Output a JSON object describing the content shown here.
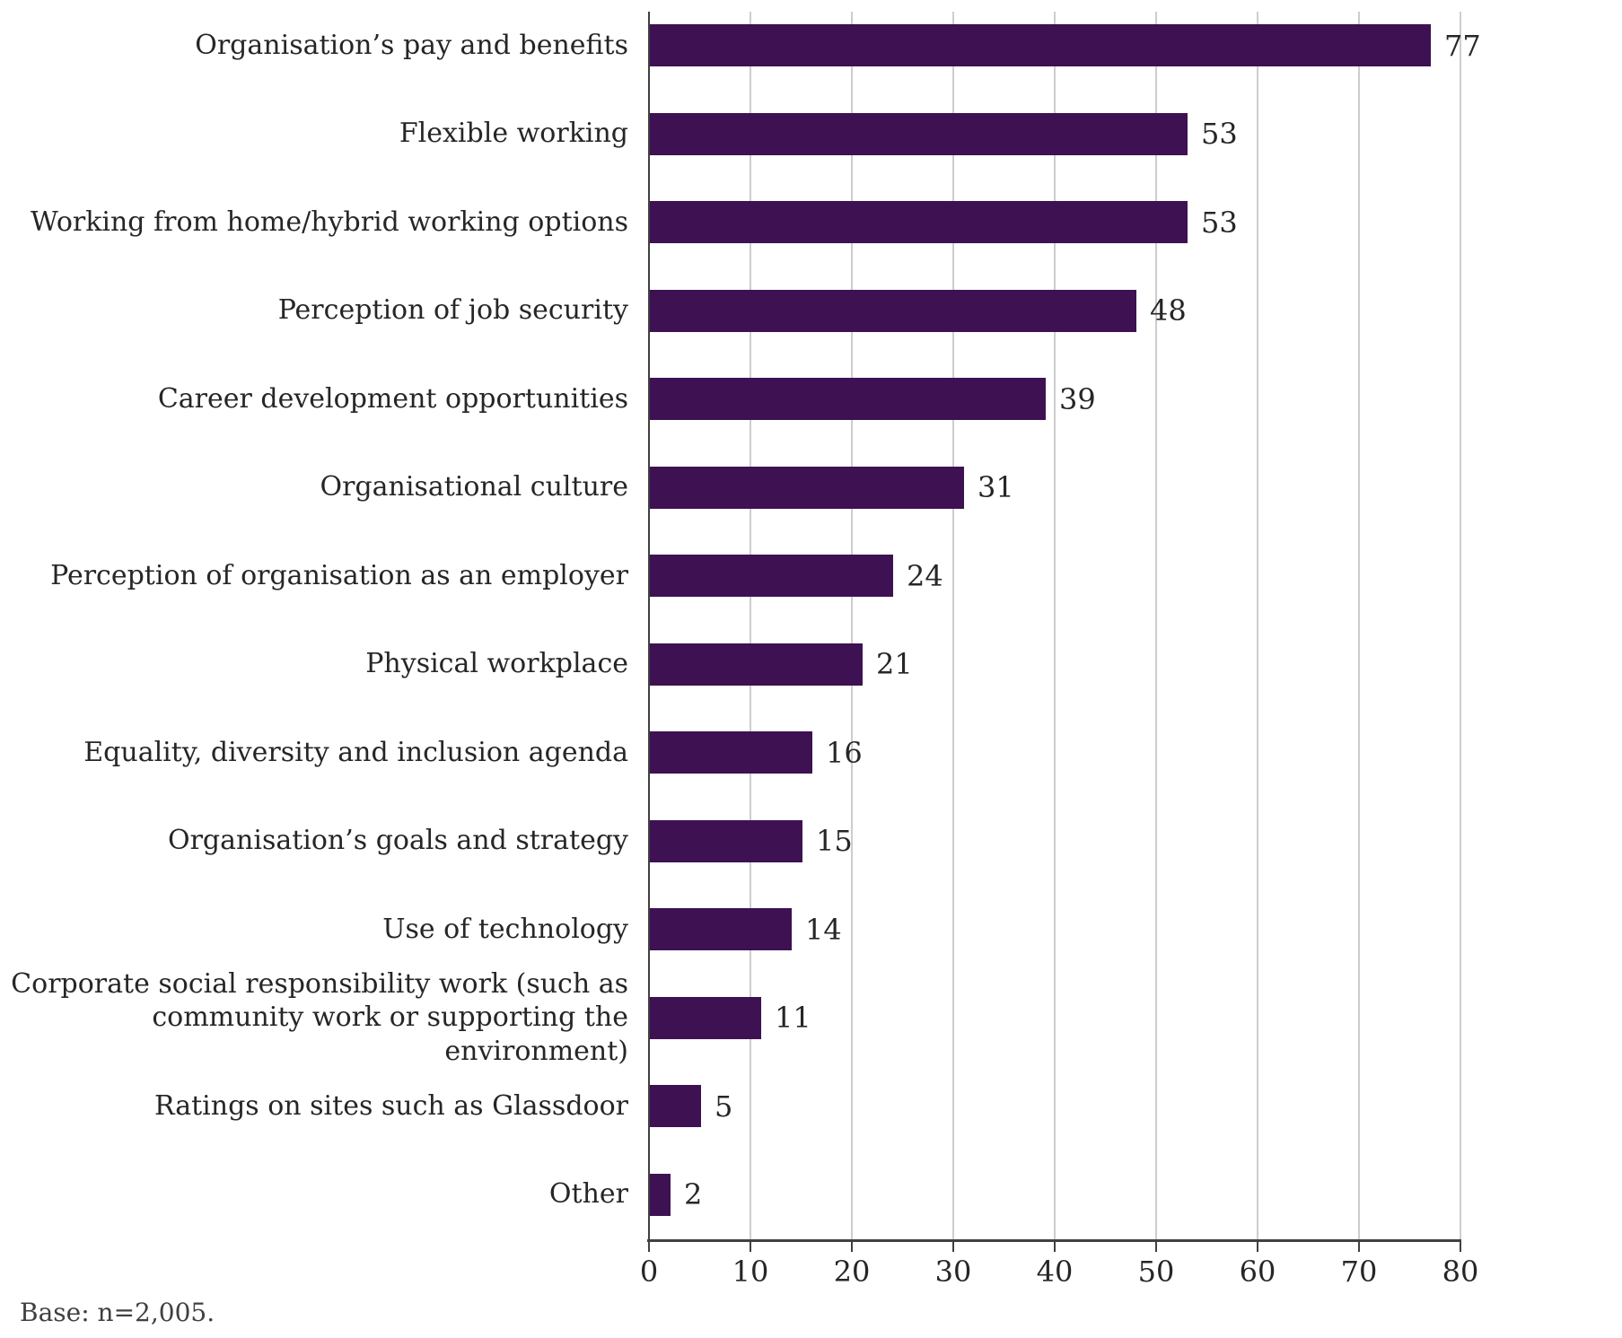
{
  "chart_data": {
    "type": "bar",
    "orientation": "horizontal",
    "title": "",
    "categories": [
      "Organisation’s pay and benefits",
      "Flexible working",
      "Working from home/hybrid working options",
      "Perception of job security",
      "Career development opportunities",
      "Organisational culture",
      "Perception of organisation as an employer",
      "Physical workplace",
      "Equality, diversity and inclusion agenda",
      "Organisation’s goals and strategy",
      "Use of technology",
      "Corporate social responsibility work (such as\ncommunity work or supporting the environment)",
      "Ratings on sites such as Glassdoor",
      "Other"
    ],
    "values": [
      77,
      53,
      53,
      48,
      39,
      31,
      24,
      21,
      16,
      15,
      14,
      11,
      5,
      2
    ],
    "x_ticks": [
      0,
      10,
      20,
      30,
      40,
      50,
      60,
      70,
      80
    ],
    "xlim": [
      0,
      80
    ],
    "grid": "vertical",
    "legend": "none",
    "value_labels_shown": true,
    "bar_color": "#3e1152",
    "gridline_color": "#cdcdcd",
    "axis_color": "#404040",
    "text_color": "#262626"
  },
  "footer": {
    "base_note": "Base: n=2,005."
  }
}
